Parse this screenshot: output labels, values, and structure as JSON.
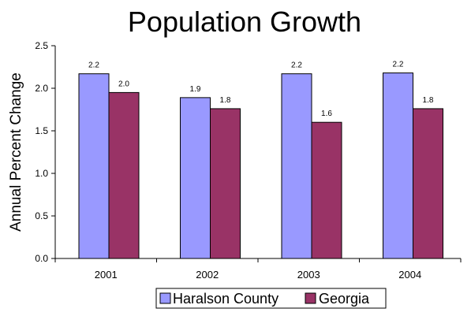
{
  "chart_data": {
    "type": "bar",
    "title": "Population Growth",
    "xlabel": "",
    "ylabel": "Annual Percent Change",
    "categories": [
      "2001",
      "2002",
      "2003",
      "2004"
    ],
    "series": [
      {
        "name": "Haralson County",
        "values": [
          2.17,
          1.89,
          2.17,
          2.18
        ],
        "labels": [
          "2.2",
          "1.9",
          "2.2",
          "2.2"
        ],
        "color": "#9999ff"
      },
      {
        "name": "Georgia",
        "values": [
          1.95,
          1.76,
          1.6,
          1.76
        ],
        "labels": [
          "2.0",
          "1.8",
          "1.6",
          "1.8"
        ],
        "color": "#993366"
      }
    ],
    "ylim": [
      0,
      2.5
    ],
    "yticks": [
      "0.0",
      "0.5",
      "1.0",
      "1.5",
      "2.0",
      "2.5"
    ],
    "grid": false,
    "legend_position": "bottom"
  }
}
